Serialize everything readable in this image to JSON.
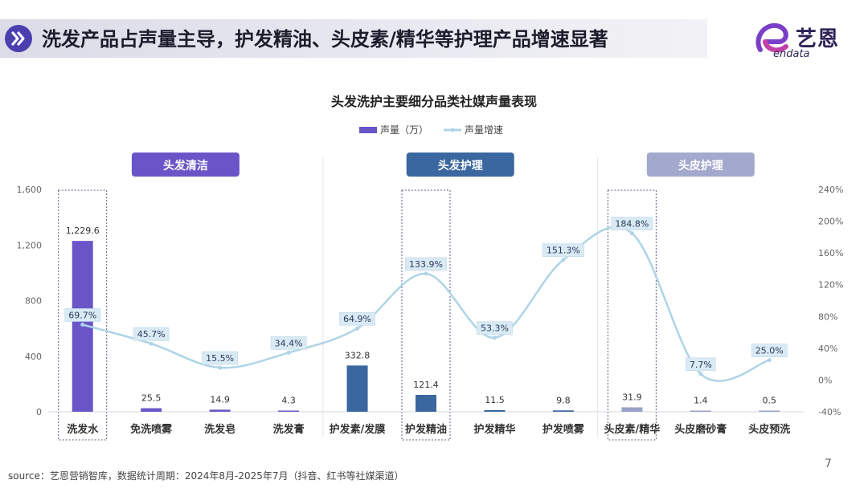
{
  "header": {
    "title": "洗发产品占声量主导，护发精油、头皮素/精华等护理产品增速显著",
    "icon": "double-chevron-right-icon"
  },
  "logo": {
    "cn": "艺恩",
    "en": "endata",
    "icon": "endata-e-logo-icon"
  },
  "source": "source：艺恩营销智库，数据统计周期：2024年8月-2025年7月（抖音、红书等社媒渠道）",
  "page_number": "7",
  "colors": {
    "accent": "#4b3fb0",
    "bar_clean": "#6a55c8",
    "bar_hair": "#3b67a0",
    "bar_scalp": "#9aa0c8",
    "line": "#aed4e6",
    "label_bg": "#d9eaf5",
    "group_clean": "#6a55c8",
    "group_hair": "#3b67a0",
    "group_scalp": "#a3a9cc"
  },
  "chart_data": {
    "type": "bar-line combo",
    "title": "头发洗护主要细分品类社媒声量表现",
    "legend": [
      "声量（万）",
      "声量增速"
    ],
    "legend_placement": "top-center",
    "categories": [
      "洗发水",
      "免洗喷雾",
      "洗发皂",
      "洗发膏",
      "护发素/发膜",
      "护发精油",
      "护发精华",
      "护发喷雾",
      "头皮素/精华",
      "头皮磨砂膏",
      "头皮预洗"
    ],
    "groups": [
      {
        "label": "头发清洁",
        "categories": [
          "洗发水",
          "免洗喷雾",
          "洗发皂",
          "洗发膏"
        ]
      },
      {
        "label": "头发护理",
        "categories": [
          "护发素/发膜",
          "护发精油",
          "护发精华",
          "护发喷雾"
        ]
      },
      {
        "label": "头皮护理",
        "categories": [
          "头皮素/精华",
          "头皮磨砂膏",
          "头皮预洗"
        ]
      }
    ],
    "series": [
      {
        "name": "声量（万）",
        "type": "bar",
        "axis": "left",
        "values": [
          1229.6,
          25.5,
          14.9,
          4.3,
          332.8,
          121.4,
          11.5,
          9.8,
          31.9,
          1.4,
          0.5
        ],
        "labels": [
          "1,229.6",
          "25.5",
          "14.9",
          "4.3",
          "332.8",
          "121.4",
          "11.5",
          "9.8",
          "31.9",
          "1.4",
          "0.5"
        ]
      },
      {
        "name": "声量增速",
        "type": "line",
        "axis": "right",
        "values": [
          69.7,
          45.7,
          15.5,
          34.4,
          64.9,
          133.9,
          53.3,
          151.3,
          184.8,
          7.7,
          25.0
        ],
        "labels": [
          "69.7%",
          "45.7%",
          "15.5%",
          "34.4%",
          "64.9%",
          "133.9%",
          "53.3%",
          "151.3%",
          "184.8%",
          "7.7%",
          "25.0%"
        ]
      }
    ],
    "y_left": {
      "min": 0,
      "max": 1600,
      "ticks": [
        "0",
        "400",
        "800",
        "1,200",
        "1,600"
      ]
    },
    "y_right": {
      "min": -40,
      "max": 240,
      "ticks": [
        "-40%",
        "0%",
        "40%",
        "80%",
        "120%",
        "160%",
        "200%",
        "240%"
      ]
    },
    "highlighted_categories": [
      "洗发水",
      "护发精油",
      "头皮素/精华"
    ],
    "grid": false
  }
}
